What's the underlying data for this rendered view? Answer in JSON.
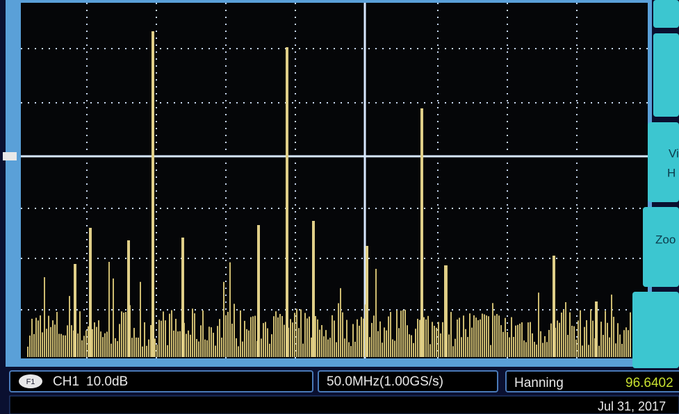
{
  "status_bar": {
    "channel_icon": "F1",
    "channel": "CH1",
    "scale": "10.0dB",
    "span": "50.0MHz(1.00GS/s)",
    "window": "Hanning",
    "reading": "96.6402",
    "date": "Jul 31, 2017"
  },
  "side_menu": [
    {
      "label": "Vi"
    },
    {
      "label": "H"
    },
    {
      "label": "Zoo"
    }
  ]
}
